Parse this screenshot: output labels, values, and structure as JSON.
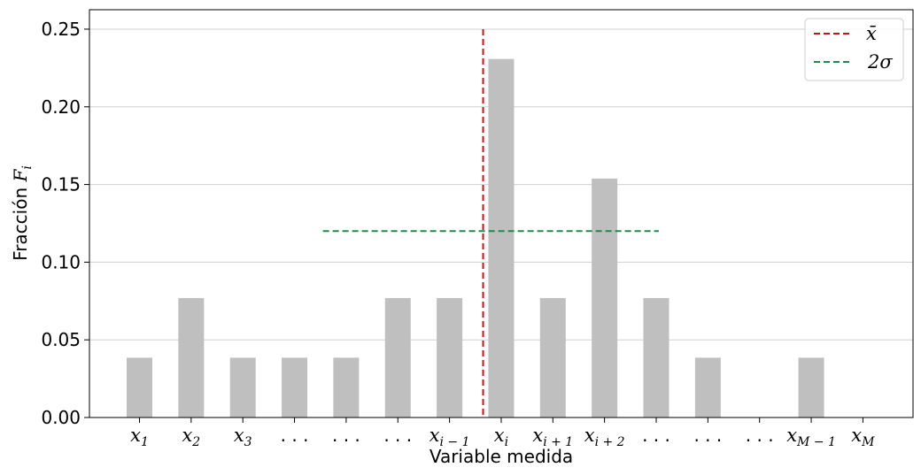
{
  "chart_data": {
    "type": "bar",
    "categories": [
      {
        "base": "x",
        "sub": "1"
      },
      {
        "base": "x",
        "sub": "2"
      },
      {
        "base": "x",
        "sub": "3"
      },
      {
        "base": ". . .",
        "sub": ""
      },
      {
        "base": ". . .",
        "sub": ""
      },
      {
        "base": ". . .",
        "sub": ""
      },
      {
        "base": "x",
        "sub": "i − 1"
      },
      {
        "base": "x",
        "sub": "i"
      },
      {
        "base": "x",
        "sub": "i + 1"
      },
      {
        "base": "x",
        "sub": "i + 2"
      },
      {
        "base": ". . .",
        "sub": ""
      },
      {
        "base": ". . .",
        "sub": ""
      },
      {
        "base": ". . .",
        "sub": ""
      },
      {
        "base": "x",
        "sub": "M − 1"
      },
      {
        "base": "x",
        "sub": "M"
      }
    ],
    "values": [
      0.0385,
      0.0769,
      0.0385,
      0.0385,
      0.0385,
      0.0769,
      0.0769,
      0.2308,
      0.0769,
      0.1538,
      0.0769,
      0.0385,
      0.0,
      0.0385,
      0.0
    ],
    "bar_color": "#bfbfbf",
    "xlabel": "Variable medida",
    "ylabel": {
      "text": "Fracción ",
      "symbol": "F",
      "sub": "i"
    },
    "ylim": [
      0,
      0.2625
    ],
    "yticks": [
      "0.00",
      "0.05",
      "0.10",
      "0.15",
      "0.20",
      "0.25"
    ],
    "grid": "horizontal",
    "mean_line": {
      "label": "x̄",
      "x_index": 6.65,
      "y_top": 0.25,
      "color": "#c0141e"
    },
    "sigma_line": {
      "label": "2σ",
      "y": 0.12,
      "x_from_index": 3.55,
      "x_to_index": 10.05,
      "color": "#1f8a4c"
    },
    "legend": {
      "placement": "top-right"
    }
  }
}
